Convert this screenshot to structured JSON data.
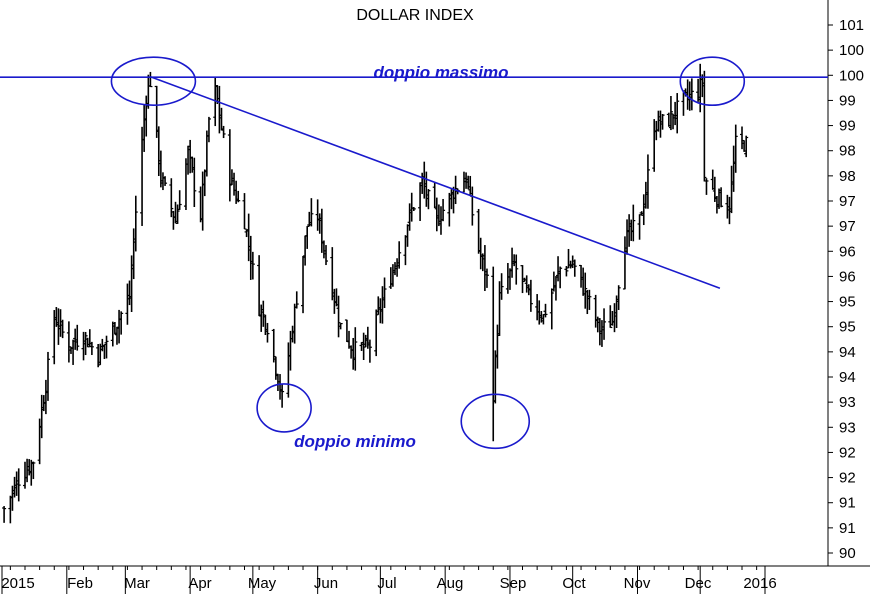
{
  "chart_data": {
    "type": "ohlc",
    "title": "DOLLAR INDEX",
    "xlabel": "",
    "ylabel": "",
    "ylim": [
      89.8,
      101.6
    ],
    "x_tick_labels": [
      "2015",
      "Feb",
      "Mar",
      "Apr",
      "May",
      "Jun",
      "Jul",
      "Aug",
      "Sep",
      "Oct",
      "Nov",
      "Dec",
      "2016"
    ],
    "y_tick_labels": [
      "90",
      "91",
      "91",
      "92",
      "92",
      "93",
      "93",
      "94",
      "94",
      "95",
      "95",
      "96",
      "96",
      "97",
      "97",
      "98",
      "98",
      "99",
      "99",
      "100",
      "100",
      "101"
    ],
    "colors": {
      "price": "#000000",
      "annotation": "#1a1acc",
      "grid": "#000000"
    },
    "annotations": [
      {
        "text": "doppio massimo",
        "kind": "label"
      },
      {
        "text": "doppio minimo",
        "kind": "label"
      }
    ],
    "resistance_line": {
      "y": 99.99,
      "label": ""
    },
    "trend_line": {
      "from": {
        "date": "2015-03-13",
        "y": 100.0
      },
      "to": {
        "date": "2015-12-31",
        "y": 95.8
      }
    },
    "circles": [
      {
        "label": "top-1",
        "date": "2015-03-13",
        "y": 100.0
      },
      {
        "label": "top-2",
        "date": "2015-12-02",
        "y": 100.0
      },
      {
        "label": "bottom-1",
        "date": "2015-05-15",
        "y": 93.2
      },
      {
        "label": "bottom-2",
        "date": "2015-08-24",
        "y": 92.9
      }
    ],
    "anchors": [
      [
        "2015-01-02",
        91.0
      ],
      [
        "2015-01-09",
        91.6
      ],
      [
        "2015-01-16",
        92.0
      ],
      [
        "2015-01-22",
        93.6
      ],
      [
        "2015-01-26",
        95.0
      ],
      [
        "2015-02-02",
        94.4
      ],
      [
        "2015-02-09",
        94.6
      ],
      [
        "2015-02-16",
        94.2
      ],
      [
        "2015-02-24",
        94.8
      ],
      [
        "2015-03-03",
        95.4
      ],
      [
        "2015-03-06",
        97.2
      ],
      [
        "2015-03-11",
        99.6
      ],
      [
        "2015-03-13",
        99.9
      ],
      [
        "2015-03-18",
        97.9
      ],
      [
        "2015-03-25",
        97.0
      ],
      [
        "2015-03-31",
        98.4
      ],
      [
        "2015-04-06",
        97.1
      ],
      [
        "2015-04-10",
        99.1
      ],
      [
        "2015-04-13",
        99.7
      ],
      [
        "2015-04-20",
        97.9
      ],
      [
        "2015-04-27",
        97.0
      ],
      [
        "2015-05-04",
        95.2
      ],
      [
        "2015-05-08",
        94.8
      ],
      [
        "2015-05-15",
        93.3
      ],
      [
        "2015-05-22",
        95.4
      ],
      [
        "2015-05-27",
        96.9
      ],
      [
        "2015-06-01",
        97.1
      ],
      [
        "2015-06-05",
        96.2
      ],
      [
        "2015-06-12",
        94.8
      ],
      [
        "2015-06-18",
        94.3
      ],
      [
        "2015-06-26",
        94.4
      ],
      [
        "2015-07-01",
        95.2
      ],
      [
        "2015-07-08",
        96.1
      ],
      [
        "2015-07-15",
        97.1
      ],
      [
        "2015-07-21",
        97.8
      ],
      [
        "2015-07-28",
        97.0
      ],
      [
        "2015-08-05",
        97.6
      ],
      [
        "2015-08-11",
        97.9
      ],
      [
        "2015-08-17",
        96.4
      ],
      [
        "2015-08-21",
        95.8
      ],
      [
        "2015-08-24",
        93.4
      ],
      [
        "2015-08-27",
        95.4
      ],
      [
        "2015-09-03",
        96.1
      ],
      [
        "2015-09-10",
        95.4
      ],
      [
        "2015-09-17",
        95.0
      ],
      [
        "2015-09-25",
        96.0
      ],
      [
        "2015-10-01",
        96.1
      ],
      [
        "2015-10-08",
        95.4
      ],
      [
        "2015-10-14",
        94.7
      ],
      [
        "2015-10-20",
        94.9
      ],
      [
        "2015-10-26",
        96.6
      ],
      [
        "2015-11-02",
        97.0
      ],
      [
        "2015-11-05",
        97.6
      ],
      [
        "2015-11-09",
        99.0
      ],
      [
        "2015-11-16",
        99.1
      ],
      [
        "2015-11-23",
        99.5
      ],
      [
        "2015-11-30",
        99.7
      ],
      [
        "2015-12-02",
        99.9
      ],
      [
        "2015-12-03",
        97.9
      ],
      [
        "2015-12-09",
        97.5
      ],
      [
        "2015-12-15",
        97.3
      ],
      [
        "2015-12-18",
        98.6
      ],
      [
        "2015-12-23",
        98.6
      ]
    ]
  }
}
